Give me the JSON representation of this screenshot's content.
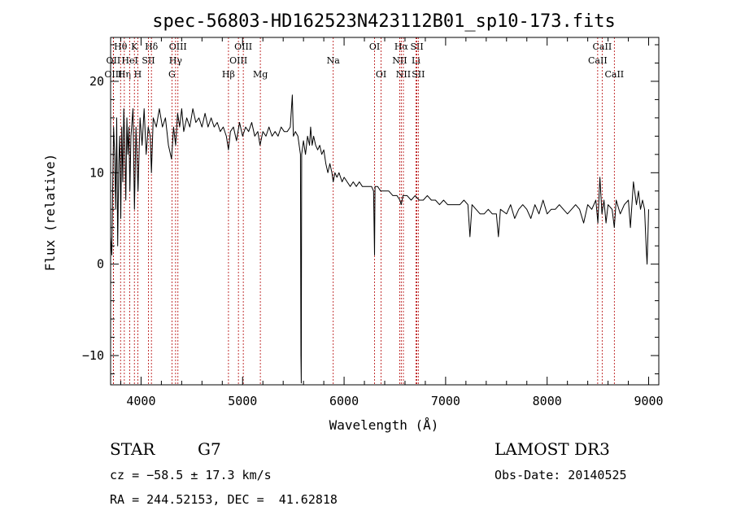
{
  "chart_data": {
    "type": "line",
    "title": "spec-56803-HD162523N423112B01_sp10-173.fits",
    "xlabel": "Wavelength (Å)",
    "ylabel": "Flux (relative)",
    "xlim": [
      3700,
      9100
    ],
    "ylim": [
      -13.2,
      24.8
    ],
    "xticks": [
      4000,
      5000,
      6000,
      7000,
      8000,
      9000
    ],
    "yticks": [
      -10,
      0,
      10,
      20
    ],
    "x_minor_step": 200,
    "y_minor_step": 2,
    "series": [
      {
        "name": "flux",
        "points": [
          [
            3700,
            3
          ],
          [
            3712,
            1
          ],
          [
            3720,
            8
          ],
          [
            3730,
            15
          ],
          [
            3740,
            12
          ],
          [
            3750,
            6
          ],
          [
            3760,
            16
          ],
          [
            3770,
            2
          ],
          [
            3780,
            11
          ],
          [
            3790,
            14
          ],
          [
            3800,
            5
          ],
          [
            3810,
            15
          ],
          [
            3820,
            9
          ],
          [
            3830,
            17
          ],
          [
            3840,
            13
          ],
          [
            3850,
            7
          ],
          [
            3860,
            16
          ],
          [
            3870,
            12
          ],
          [
            3880,
            15
          ],
          [
            3890,
            8
          ],
          [
            3900,
            14
          ],
          [
            3920,
            17
          ],
          [
            3935,
            6
          ],
          [
            3950,
            15
          ],
          [
            3970,
            8
          ],
          [
            3990,
            16
          ],
          [
            4010,
            13
          ],
          [
            4030,
            17
          ],
          [
            4050,
            12
          ],
          [
            4070,
            15
          ],
          [
            4090,
            14
          ],
          [
            4102,
            10
          ],
          [
            4120,
            16
          ],
          [
            4150,
            15
          ],
          [
            4180,
            17
          ],
          [
            4210,
            15
          ],
          [
            4240,
            16
          ],
          [
            4270,
            13
          ],
          [
            4300,
            11.5
          ],
          [
            4320,
            15
          ],
          [
            4340,
            13
          ],
          [
            4360,
            16.5
          ],
          [
            4380,
            15
          ],
          [
            4400,
            17
          ],
          [
            4420,
            14.5
          ],
          [
            4450,
            16
          ],
          [
            4480,
            15
          ],
          [
            4510,
            17
          ],
          [
            4540,
            15.5
          ],
          [
            4570,
            16
          ],
          [
            4600,
            15
          ],
          [
            4630,
            16.5
          ],
          [
            4660,
            15
          ],
          [
            4690,
            16
          ],
          [
            4720,
            15
          ],
          [
            4750,
            15.5
          ],
          [
            4780,
            14.5
          ],
          [
            4810,
            15
          ],
          [
            4840,
            14
          ],
          [
            4861,
            12.5
          ],
          [
            4880,
            14.5
          ],
          [
            4910,
            15
          ],
          [
            4940,
            13.5
          ],
          [
            4970,
            15.5
          ],
          [
            5000,
            14
          ],
          [
            5030,
            15
          ],
          [
            5060,
            14.5
          ],
          [
            5090,
            15.5
          ],
          [
            5120,
            14
          ],
          [
            5150,
            14.5
          ],
          [
            5172,
            13
          ],
          [
            5200,
            14.5
          ],
          [
            5230,
            14
          ],
          [
            5260,
            15
          ],
          [
            5290,
            14
          ],
          [
            5320,
            14.5
          ],
          [
            5350,
            14
          ],
          [
            5380,
            15
          ],
          [
            5410,
            14.5
          ],
          [
            5440,
            14.5
          ],
          [
            5470,
            15
          ],
          [
            5490,
            18.5
          ],
          [
            5500,
            14
          ],
          [
            5520,
            14.5
          ],
          [
            5545,
            14
          ],
          [
            5570,
            12
          ],
          [
            5575,
            -10
          ],
          [
            5578,
            -13
          ],
          [
            5582,
            12
          ],
          [
            5600,
            13.5
          ],
          [
            5620,
            12
          ],
          [
            5640,
            14
          ],
          [
            5660,
            13
          ],
          [
            5670,
            15
          ],
          [
            5685,
            13
          ],
          [
            5700,
            14
          ],
          [
            5720,
            13
          ],
          [
            5740,
            12.5
          ],
          [
            5760,
            13
          ],
          [
            5780,
            12
          ],
          [
            5800,
            12.5
          ],
          [
            5820,
            11
          ],
          [
            5840,
            10
          ],
          [
            5860,
            11
          ],
          [
            5880,
            10
          ],
          [
            5893,
            9
          ],
          [
            5910,
            10
          ],
          [
            5930,
            9.5
          ],
          [
            5950,
            10
          ],
          [
            5980,
            9
          ],
          [
            6000,
            9.5
          ],
          [
            6030,
            9
          ],
          [
            6060,
            8.5
          ],
          [
            6090,
            9
          ],
          [
            6120,
            8.5
          ],
          [
            6150,
            9
          ],
          [
            6180,
            8.5
          ],
          [
            6210,
            8.5
          ],
          [
            6240,
            8.5
          ],
          [
            6270,
            8.5
          ],
          [
            6290,
            8
          ],
          [
            6300,
            1
          ],
          [
            6305,
            8.5
          ],
          [
            6330,
            8.5
          ],
          [
            6360,
            8
          ],
          [
            6400,
            8
          ],
          [
            6440,
            8
          ],
          [
            6480,
            7.5
          ],
          [
            6520,
            7.5
          ],
          [
            6550,
            7
          ],
          [
            6563,
            6.5
          ],
          [
            6580,
            7.5
          ],
          [
            6620,
            7.5
          ],
          [
            6660,
            7
          ],
          [
            6700,
            7.5
          ],
          [
            6740,
            7
          ],
          [
            6780,
            7
          ],
          [
            6820,
            7.5
          ],
          [
            6860,
            7
          ],
          [
            6900,
            7
          ],
          [
            6940,
            6.5
          ],
          [
            6980,
            7
          ],
          [
            7020,
            6.5
          ],
          [
            7060,
            6.5
          ],
          [
            7100,
            6.5
          ],
          [
            7140,
            6.5
          ],
          [
            7180,
            7
          ],
          [
            7220,
            6.5
          ],
          [
            7240,
            3
          ],
          [
            7260,
            6.5
          ],
          [
            7300,
            6
          ],
          [
            7340,
            5.5
          ],
          [
            7380,
            5.5
          ],
          [
            7420,
            6
          ],
          [
            7460,
            5.5
          ],
          [
            7500,
            5.5
          ],
          [
            7520,
            3
          ],
          [
            7540,
            6
          ],
          [
            7600,
            5.5
          ],
          [
            7640,
            6.5
          ],
          [
            7680,
            5
          ],
          [
            7720,
            6
          ],
          [
            7760,
            6.5
          ],
          [
            7800,
            6
          ],
          [
            7840,
            5
          ],
          [
            7880,
            6.5
          ],
          [
            7920,
            5.5
          ],
          [
            7960,
            7
          ],
          [
            8000,
            5.5
          ],
          [
            8040,
            6
          ],
          [
            8080,
            6
          ],
          [
            8120,
            6.5
          ],
          [
            8160,
            6
          ],
          [
            8200,
            5.5
          ],
          [
            8240,
            6
          ],
          [
            8280,
            6.5
          ],
          [
            8320,
            6
          ],
          [
            8360,
            4.5
          ],
          [
            8400,
            6.5
          ],
          [
            8440,
            6
          ],
          [
            8480,
            7
          ],
          [
            8500,
            4.5
          ],
          [
            8520,
            9.5
          ],
          [
            8540,
            5.5
          ],
          [
            8560,
            7
          ],
          [
            8580,
            4.5
          ],
          [
            8600,
            6.5
          ],
          [
            8640,
            6
          ],
          [
            8662,
            4
          ],
          [
            8680,
            7
          ],
          [
            8720,
            5.5
          ],
          [
            8760,
            6.5
          ],
          [
            8800,
            7
          ],
          [
            8820,
            4
          ],
          [
            8850,
            9
          ],
          [
            8880,
            6.5
          ],
          [
            8900,
            8
          ],
          [
            8920,
            6
          ],
          [
            8940,
            7
          ],
          [
            8960,
            6
          ],
          [
            8975,
            2
          ],
          [
            8985,
            0
          ],
          [
            8995,
            4
          ],
          [
            9000,
            6
          ]
        ]
      }
    ],
    "line_markers": [
      {
        "label": "Hθ",
        "wavelength": 3798,
        "row": 0
      },
      {
        "label": "OII",
        "wavelength": 3727,
        "row": 1
      },
      {
        "label": "OIII",
        "wavelength": 3727,
        "row": 2
      },
      {
        "label": "Hη",
        "wavelength": 3835,
        "row": 2
      },
      {
        "label": "K",
        "wavelength": 3934,
        "row": 0
      },
      {
        "label": "HeI",
        "wavelength": 3889,
        "row": 1
      },
      {
        "label": "H",
        "wavelength": 3968,
        "row": 2
      },
      {
        "label": "Hδ",
        "wavelength": 4102,
        "row": 0
      },
      {
        "label": "SII",
        "wavelength": 4072,
        "row": 1
      },
      {
        "label": "OIII",
        "wavelength": 4363,
        "row": 0
      },
      {
        "label": "Hγ",
        "wavelength": 4340,
        "row": 1
      },
      {
        "label": "G",
        "wavelength": 4304,
        "row": 2
      },
      {
        "label": "OIII",
        "wavelength": 5007,
        "row": 0
      },
      {
        "label": "OIII",
        "wavelength": 4959,
        "row": 1
      },
      {
        "label": "Hβ",
        "wavelength": 4861,
        "row": 2
      },
      {
        "label": "Mg",
        "wavelength": 5175,
        "row": 2
      },
      {
        "label": "Na",
        "wavelength": 5893,
        "row": 1
      },
      {
        "label": "OI",
        "wavelength": 6300,
        "row": 0
      },
      {
        "label": "OI",
        "wavelength": 6364,
        "row": 2
      },
      {
        "label": "Hα",
        "wavelength": 6563,
        "row": 0
      },
      {
        "label": "NII",
        "wavelength": 6548,
        "row": 1
      },
      {
        "label": "NII",
        "wavelength": 6584,
        "row": 2
      },
      {
        "label": "SII",
        "wavelength": 6717,
        "row": 0
      },
      {
        "label": "Li",
        "wavelength": 6708,
        "row": 1
      },
      {
        "label": "SII",
        "wavelength": 6731,
        "row": 2
      },
      {
        "label": "CaII",
        "wavelength": 8542,
        "row": 0
      },
      {
        "label": "CaII",
        "wavelength": 8498,
        "row": 1
      },
      {
        "label": "CaII",
        "wavelength": 8662,
        "row": 2
      }
    ]
  },
  "info": {
    "class": "STAR",
    "subclass": "G7",
    "survey": "LAMOST DR3",
    "cz": "cz = −58.5 ± 17.3 km/s",
    "obs_date": "Obs-Date: 20140525",
    "radec": "RA = 244.52153, DEC =  41.62818"
  }
}
